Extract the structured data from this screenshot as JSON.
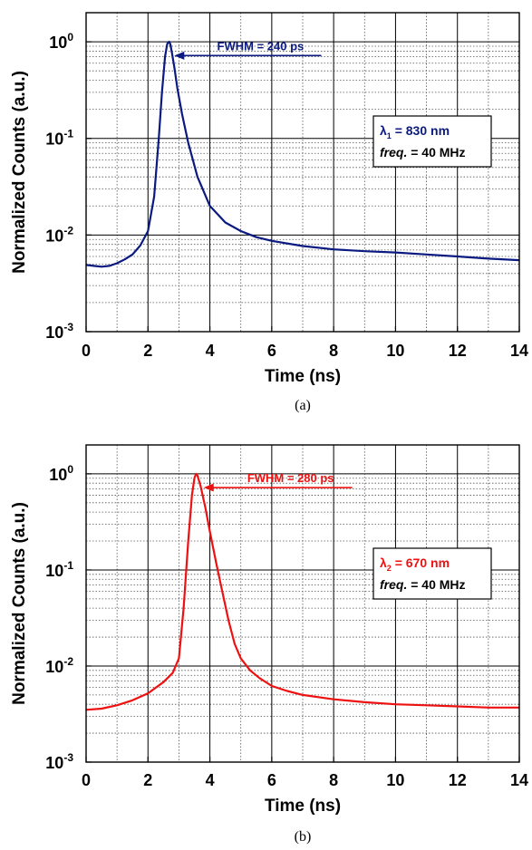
{
  "chart_data": [
    {
      "type": "line",
      "panel_label": "(a)",
      "xlabel": "Time (ns)",
      "ylabel": "Normalized Counts (a.u.)",
      "xlim": [
        0,
        14
      ],
      "ylim": [
        0.001,
        2
      ],
      "yscale": "log",
      "grid": true,
      "x_ticks": [
        "0",
        "2",
        "4",
        "6",
        "8",
        "10",
        "12",
        "14"
      ],
      "y_ticks": [
        {
          "base": "10",
          "exp": "0"
        },
        {
          "base": "10",
          "exp": "-1"
        },
        {
          "base": "10",
          "exp": "-2"
        },
        {
          "base": "10",
          "exp": "-3"
        }
      ],
      "color": "#0a1a80",
      "annotation": {
        "text": "FWHM = 240 ps",
        "arrow_tip": [
          2.85,
          0.72
        ],
        "arrow_tail": [
          7.6,
          0.72
        ]
      },
      "info_box": {
        "lambda": "λ",
        "lambda_sub": "1",
        "lambda_value": " = 830 nm",
        "freq_label": "freq.",
        "freq_value": " = 40 MHz"
      },
      "series": [
        {
          "x": [
            0,
            0.25,
            0.5,
            0.75,
            1.0,
            1.25,
            1.5,
            1.75,
            2.0,
            2.2,
            2.35,
            2.45,
            2.55,
            2.62,
            2.68,
            2.72,
            2.78,
            2.85,
            2.95,
            3.1,
            3.3,
            3.6,
            4.0,
            4.5,
            5.0,
            5.5,
            6.0,
            7.0,
            8.0,
            9.0,
            10.0,
            11.0,
            12.0,
            13.0,
            14.0
          ],
          "y": [
            0.0049,
            0.0048,
            0.0047,
            0.0048,
            0.0051,
            0.0056,
            0.0063,
            0.0078,
            0.011,
            0.025,
            0.1,
            0.3,
            0.7,
            0.95,
            1.0,
            0.95,
            0.75,
            0.55,
            0.33,
            0.18,
            0.09,
            0.04,
            0.02,
            0.0135,
            0.011,
            0.0095,
            0.0087,
            0.0077,
            0.0071,
            0.0068,
            0.0066,
            0.0063,
            0.006,
            0.0057,
            0.0055
          ]
        }
      ]
    },
    {
      "type": "line",
      "panel_label": "(b)",
      "xlabel": "Time (ns)",
      "ylabel": "Normalized Counts (a.u.)",
      "xlim": [
        0,
        14
      ],
      "ylim": [
        0.001,
        2
      ],
      "yscale": "log",
      "grid": true,
      "x_ticks": [
        "0",
        "2",
        "4",
        "6",
        "8",
        "10",
        "12",
        "14"
      ],
      "y_ticks": [
        {
          "base": "10",
          "exp": "0"
        },
        {
          "base": "10",
          "exp": "-1"
        },
        {
          "base": "10",
          "exp": "-2"
        },
        {
          "base": "10",
          "exp": "-3"
        }
      ],
      "color": "#ee1111",
      "annotation": {
        "text": "FWHM = 280 ps",
        "arrow_tip": [
          3.8,
          0.72
        ],
        "arrow_tail": [
          8.6,
          0.72
        ]
      },
      "info_box": {
        "lambda": "λ",
        "lambda_sub": "2",
        "lambda_value": " = 670 nm",
        "freq_label": "freq.",
        "freq_value": " = 40 MHz"
      },
      "series": [
        {
          "x": [
            0,
            0.5,
            1.0,
            1.5,
            2.0,
            2.5,
            2.8,
            3.0,
            3.15,
            3.3,
            3.42,
            3.5,
            3.55,
            3.6,
            3.7,
            3.85,
            4.0,
            4.2,
            4.4,
            4.6,
            4.8,
            5.0,
            5.3,
            5.6,
            6.0,
            6.5,
            7.0,
            8.0,
            9.0,
            10.0,
            11.0,
            12.0,
            13.0,
            14.0
          ],
          "y": [
            0.0035,
            0.0036,
            0.0039,
            0.0044,
            0.0052,
            0.0068,
            0.0085,
            0.012,
            0.04,
            0.2,
            0.6,
            0.9,
            1.0,
            0.96,
            0.75,
            0.45,
            0.25,
            0.12,
            0.06,
            0.03,
            0.017,
            0.012,
            0.009,
            0.0075,
            0.0062,
            0.0055,
            0.005,
            0.0045,
            0.0042,
            0.004,
            0.0039,
            0.0038,
            0.0037,
            0.0037
          ]
        }
      ]
    }
  ]
}
